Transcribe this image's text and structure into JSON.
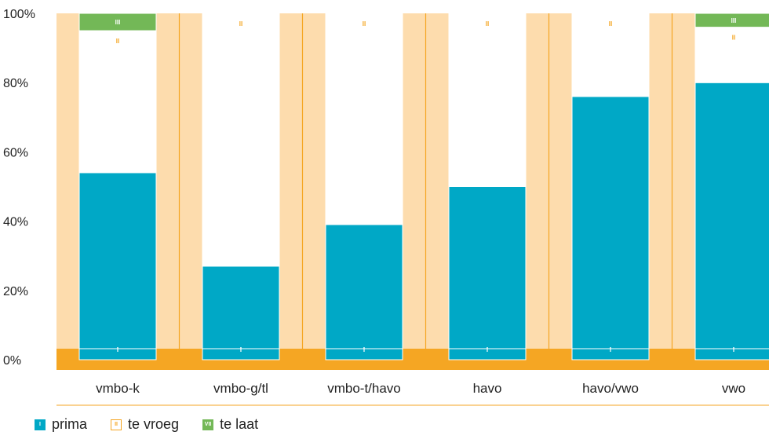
{
  "chart_data": {
    "type": "bar",
    "stacked": true,
    "categories": [
      "vmbo-k",
      "vmbo-g/tl",
      "vmbo-t/havo",
      "havo",
      "havo/vwo",
      "vwo"
    ],
    "series": [
      {
        "name": "prima",
        "marker": "I",
        "color": "#00a8c6",
        "values": [
          54,
          27,
          39,
          50,
          76,
          80
        ]
      },
      {
        "name": "te vroeg",
        "marker": "II",
        "color": "#ffffff",
        "values": [
          41,
          73,
          61,
          50,
          24,
          16
        ]
      },
      {
        "name": "te laat",
        "marker": "III",
        "color": "#73b857",
        "values": [
          5,
          0,
          0,
          0,
          0,
          4
        ]
      }
    ],
    "y_ticks": [
      "0%",
      "20%",
      "40%",
      "60%",
      "80%",
      "100%"
    ],
    "ylim": [
      0,
      100
    ],
    "background_color": "#fddcad",
    "accent_color": "#f5a623",
    "legend_position": "bottom-left"
  },
  "legend": [
    {
      "marker": "I",
      "label": "prima",
      "color": "#00a8c6",
      "text_color": "#ffffff"
    },
    {
      "marker": "II",
      "label": "te vroeg",
      "color": "#ffffff",
      "text_color": "#f5a623"
    },
    {
      "marker": "VII",
      "label": "te laat",
      "color": "#73b857",
      "text_color": "#ffffff"
    }
  ]
}
